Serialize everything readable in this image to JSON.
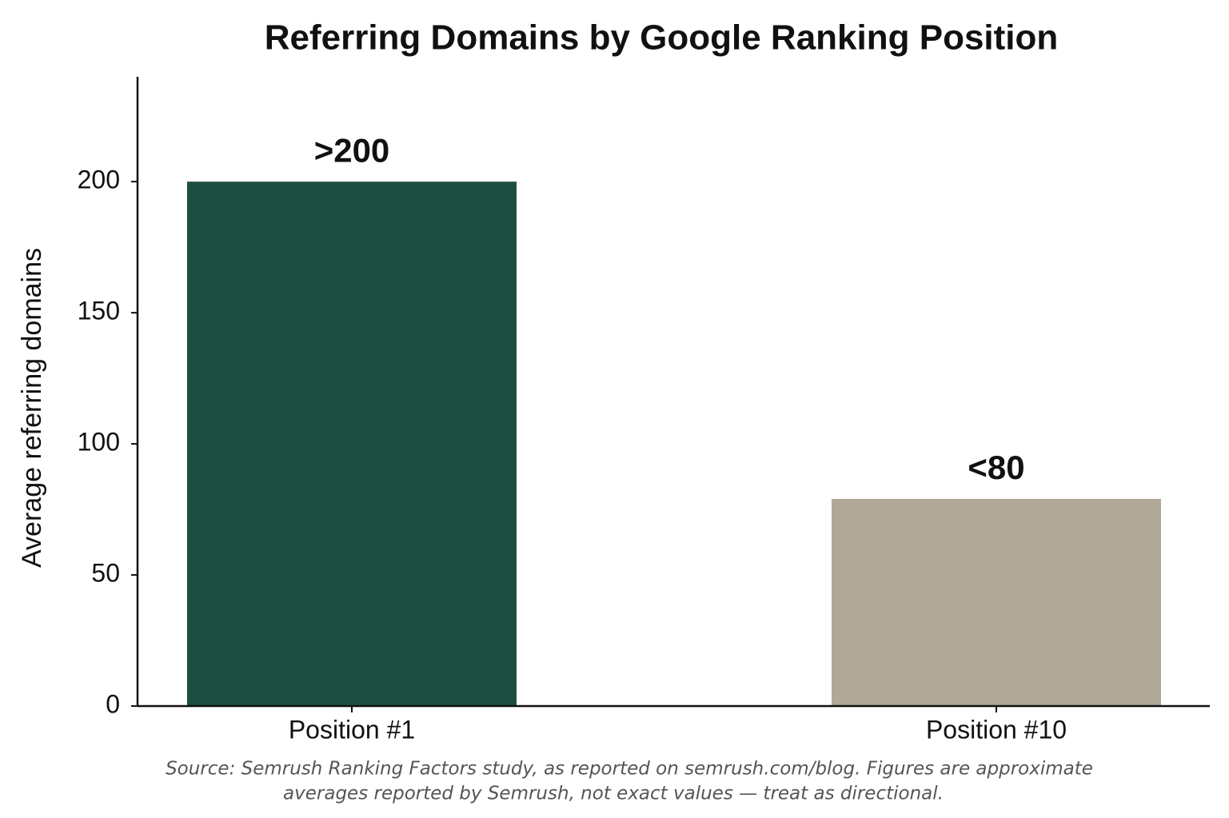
{
  "chart_data": {
    "type": "bar",
    "title": "Referring Domains by Google Ranking Position",
    "y_label": "Average referring domains",
    "categories": [
      "Position #1",
      "Position #10"
    ],
    "values": [
      200,
      79
    ],
    "value_labels": [
      ">200",
      "<80"
    ],
    "colors": [
      "#1e4d42",
      "#b0a898"
    ],
    "ylim": [
      0,
      240
    ],
    "yticks": [
      0,
      50,
      100,
      150,
      200
    ],
    "grid": false,
    "source": [
      "Source: Semrush Ranking Factors study, as reported on semrush.com/blog. Figures are approximate",
      "averages reported by Semrush, not exact values — treat as directional."
    ]
  }
}
